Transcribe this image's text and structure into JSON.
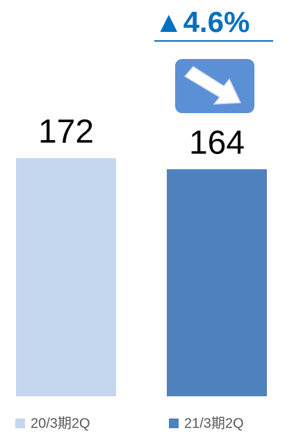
{
  "chart_data": {
    "type": "bar",
    "annotation": "▲4.6%",
    "categories": [
      "20/3期2Q",
      "21/3期2Q"
    ],
    "values": [
      172,
      164
    ],
    "colors": [
      "#c5d7ef",
      "#4f81bd"
    ],
    "ylim": [
      0,
      200
    ]
  }
}
